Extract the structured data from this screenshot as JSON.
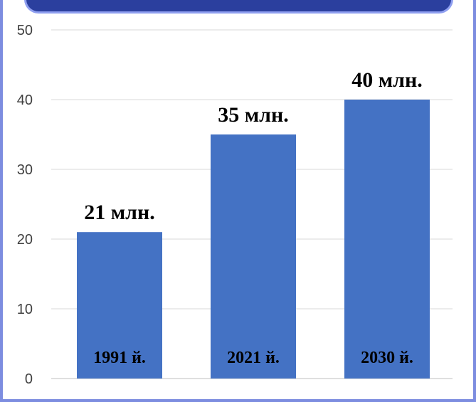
{
  "chart_data": {
    "type": "bar",
    "categories": [
      "1991 й.",
      "2021 й.",
      "2030 й."
    ],
    "values": [
      21,
      35,
      40
    ],
    "data_labels": [
      "21 млн.",
      "35 млн.",
      "40 млн."
    ],
    "yticks": [
      "0",
      "10",
      "20",
      "30",
      "40",
      "50"
    ],
    "ylim": [
      0,
      50
    ],
    "grid": true,
    "bar_color": "#4472c4",
    "grid_color": "#d9d9d9"
  }
}
